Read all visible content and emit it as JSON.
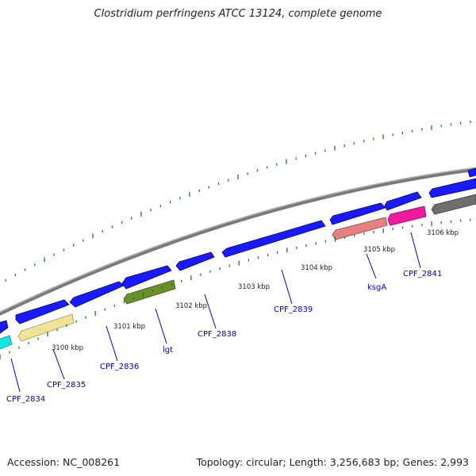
{
  "title": "Clostridium perfringens ATCC 13124, complete genome",
  "footer": {
    "accession": "Accession: NC_008261",
    "summary": "Topology: circular; Length: 3,256,683 bp; Genes: 2,993"
  },
  "colors": {
    "backbone": "#8a8a8a",
    "ticks": "#1f7a1f",
    "cds_blue": "#1a1aff",
    "cyan": "#12e6e6",
    "pale_yellow": "#efe39a",
    "olive": "#6b8f2b",
    "salmon": "#e88080",
    "magenta": "#ee1aa0",
    "gray": "#6e6e6e",
    "label": "#0000c8"
  },
  "scale_labels": [
    "3100 kbp",
    "3101 kbp",
    "3102 kbp",
    "3103 kbp",
    "3104 kbp",
    "3105 kbp",
    "3106 kbp"
  ],
  "genes": {
    "outer_forward": [
      "blue",
      "blue",
      "blue",
      "blue",
      "blue",
      "blue",
      "blue",
      "blue",
      "blue",
      "blue"
    ],
    "inner_reverse": [
      "cyan",
      "pale_yellow",
      "olive",
      "salmon",
      "magenta",
      "gray"
    ]
  },
  "gene_labels": [
    "CPF_2834",
    "CPF_2835",
    "CPF_2836",
    "lgt",
    "CPF_2838",
    "CPF_2839",
    "ksgA",
    "CPF_2841"
  ]
}
